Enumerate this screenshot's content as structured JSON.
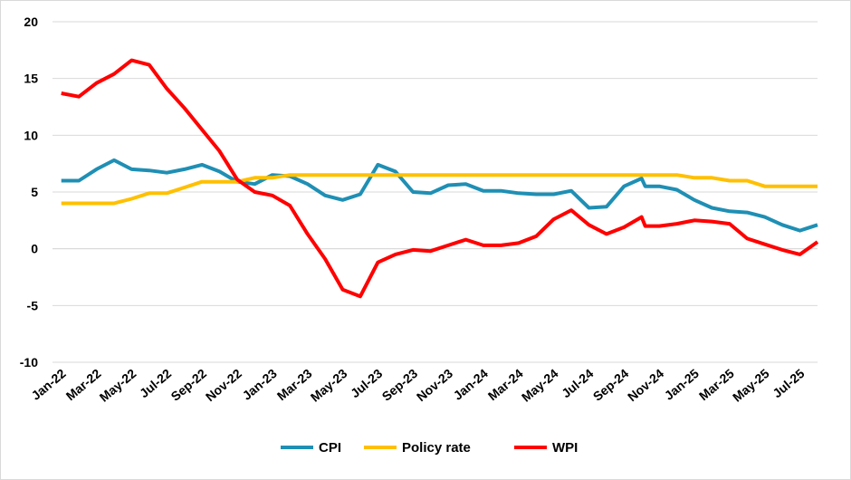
{
  "chart_data": {
    "type": "line",
    "title": "",
    "xlabel": "",
    "ylabel": "",
    "ylim": [
      -10,
      20
    ],
    "yticks": [
      20,
      15,
      10,
      5,
      0,
      -5,
      -10
    ],
    "grid": "horizontal",
    "legend_position": "bottom",
    "x": [
      "Jan-22",
      "Feb-22",
      "Mar-22",
      "Apr-22",
      "May-22",
      "Jun-22",
      "Jul-22",
      "Aug-22",
      "Sep-22",
      "Oct-22",
      "Nov-22",
      "Dec-22",
      "Jan-23",
      "Feb-23",
      "Mar-23",
      "Apr-23",
      "May-23",
      "Jun-23",
      "Jul-23",
      "Aug-23",
      "Sep-23",
      "Oct-23",
      "Nov-23",
      "Dec-23",
      "Jan-24",
      "Feb-24",
      "Mar-24",
      "Apr-24",
      "May-24",
      "Jun-24",
      "Jul-24",
      "Aug-24",
      "Sep-24",
      "Oct-24",
      "Nov-24",
      "Dec-24",
      "Jan-25",
      "Feb-25",
      "Mar-25",
      "Apr-25",
      "May-25",
      "Jun-25",
      "Jul-25",
      "Aug-25"
    ],
    "xtick_labels": [
      "Jan-22",
      "Mar-22",
      "May-22",
      "Jul-22",
      "Sep-22",
      "Nov-22",
      "Jan-23",
      "Mar-23",
      "May-23",
      "Jul-23",
      "Sep-23",
      "Nov-23",
      "Jan-24",
      "Mar-24",
      "May-24",
      "Jul-24",
      "Sep-24",
      "Nov-24",
      "Jan-25",
      "Mar-25",
      "May-25",
      "Jul-25"
    ],
    "series": [
      {
        "name": "CPI",
        "color": "#1f8fb4",
        "values": [
          6.0,
          6.0,
          7.0,
          7.8,
          7.0,
          6.9,
          6.7,
          7.0,
          7.4,
          6.8,
          5.9,
          5.7,
          6.5,
          6.4,
          5.7,
          4.7,
          4.3,
          4.8,
          7.4,
          6.8,
          5.0,
          4.9,
          5.6,
          5.7,
          5.1,
          5.1,
          4.9,
          4.8,
          4.8,
          5.1,
          3.6,
          3.7,
          5.5,
          6.2,
          5.5,
          5.2,
          4.3,
          3.6,
          3.3,
          3.2,
          2.8,
          2.1,
          1.6,
          2.1
        ],
        "extra_points": [
          {
            "after_index": 33,
            "value": 5.5
          }
        ]
      },
      {
        "name": "Policy rate",
        "color": "#ffc000",
        "values": [
          4.0,
          4.0,
          4.0,
          4.0,
          4.4,
          4.9,
          4.9,
          5.4,
          5.9,
          5.9,
          5.9,
          6.25,
          6.25,
          6.5,
          6.5,
          6.5,
          6.5,
          6.5,
          6.5,
          6.5,
          6.5,
          6.5,
          6.5,
          6.5,
          6.5,
          6.5,
          6.5,
          6.5,
          6.5,
          6.5,
          6.5,
          6.5,
          6.5,
          6.5,
          6.5,
          6.5,
          6.25,
          6.25,
          6.0,
          6.0,
          5.5,
          5.5,
          5.5,
          5.5
        ]
      },
      {
        "name": "WPI",
        "color": "#ff0000",
        "values": [
          13.7,
          13.4,
          14.6,
          15.4,
          16.6,
          16.2,
          14.1,
          12.4,
          10.5,
          8.6,
          6.1,
          5.0,
          4.7,
          3.8,
          1.3,
          -0.9,
          -3.6,
          -4.2,
          -1.2,
          -0.5,
          -0.1,
          -0.2,
          0.3,
          0.8,
          0.3,
          0.3,
          0.5,
          1.1,
          2.6,
          3.4,
          2.1,
          1.3,
          1.9,
          2.8,
          2.0,
          2.2,
          2.5,
          2.4,
          2.2,
          0.9,
          0.4,
          -0.1,
          -0.5,
          0.6
        ],
        "extra_points": [
          {
            "after_index": 33,
            "value": 2.0
          }
        ]
      }
    ]
  }
}
